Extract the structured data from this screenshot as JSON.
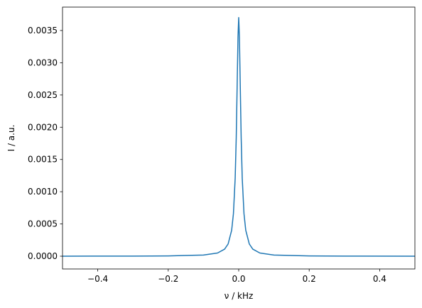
{
  "chart_data": {
    "type": "line",
    "x_label": "ν / kHz",
    "y_label": "I / a.u.",
    "x": [
      -0.5,
      -0.3,
      -0.2,
      -0.1,
      -0.06,
      -0.04,
      -0.03,
      -0.02,
      -0.015,
      -0.01,
      -0.007,
      -0.004,
      -0.002,
      0,
      0.002,
      0.004,
      0.007,
      0.01,
      0.015,
      0.02,
      0.03,
      0.04,
      0.06,
      0.1,
      0.2,
      0.3,
      0.5
    ],
    "values": [
      7.2e-07,
      2e-06,
      4.5e-06,
      1.79e-05,
      4.94e-05,
      0.0001093,
      0.00019,
      0.000402,
      0.000658,
      0.00121,
      0.00184,
      0.002774,
      0.003402,
      0.0037,
      0.003402,
      0.002774,
      0.00184,
      0.00121,
      0.000658,
      0.000402,
      0.00019,
      0.0001093,
      4.94e-05,
      1.79e-05,
      4.5e-06,
      2e-06,
      7.2e-07
    ],
    "color": "#1f77b4",
    "xlim": [
      -0.5,
      0.5
    ],
    "xticks": [
      {
        "value": -0.4,
        "label": "−0.4"
      },
      {
        "value": -0.2,
        "label": "−0.2"
      },
      {
        "value": 0,
        "label": "0.0"
      },
      {
        "value": 0.2,
        "label": "0.2"
      },
      {
        "value": 0.4,
        "label": "0.4"
      }
    ],
    "ylim": [
      -0.000198,
      0.003863
    ],
    "yticks": [
      {
        "value": 0,
        "label": "0.0000"
      },
      {
        "value": 0.0005,
        "label": "0.0005"
      },
      {
        "value": 0.001,
        "label": "0.0010"
      },
      {
        "value": 0.0015,
        "label": "0.0015"
      },
      {
        "value": 0.002,
        "label": "0.0020"
      },
      {
        "value": 0.0025,
        "label": "0.0025"
      },
      {
        "value": 0.003,
        "label": "0.0030"
      },
      {
        "value": 0.0035,
        "label": "0.0035"
      }
    ],
    "grid": false
  }
}
